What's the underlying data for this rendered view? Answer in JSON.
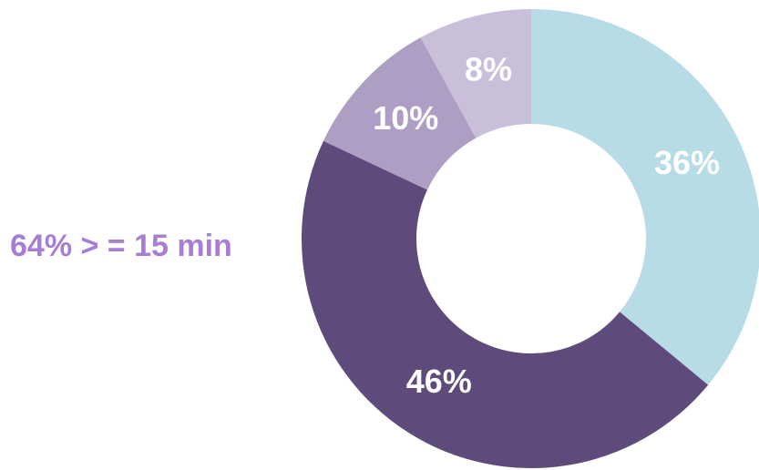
{
  "chart_data": {
    "type": "pie",
    "donut": true,
    "slices": [
      {
        "label": "36%",
        "value": 36,
        "color": "#b7dce6"
      },
      {
        "label": "46%",
        "value": 46,
        "color": "#5e4b7c"
      },
      {
        "label": "10%",
        "value": 10,
        "color": "#ae9ec4"
      },
      {
        "label": "8%",
        "value": 8,
        "color": "#c9bfd9"
      }
    ],
    "start": "top",
    "direction": "clockwise",
    "annotation": {
      "text": "64% > = 15 min",
      "color": "#a77ed3"
    }
  }
}
